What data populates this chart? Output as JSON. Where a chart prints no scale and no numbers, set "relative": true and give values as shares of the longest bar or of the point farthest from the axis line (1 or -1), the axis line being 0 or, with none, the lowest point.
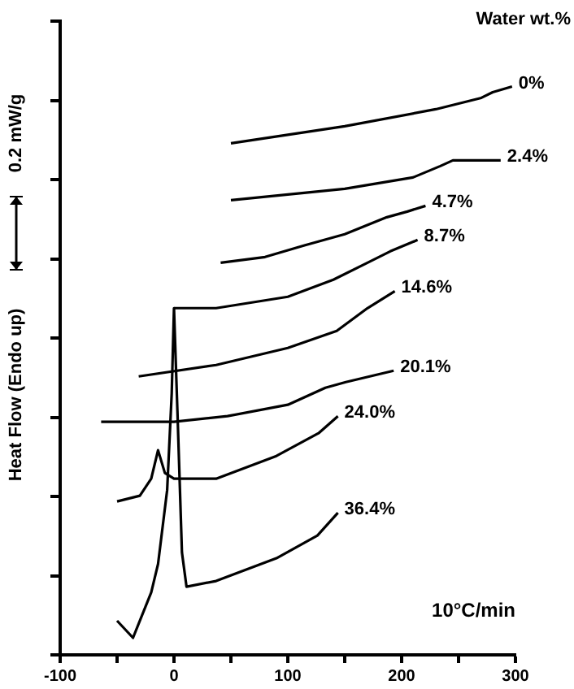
{
  "chart_data": {
    "type": "line",
    "relative": true,
    "ylabel": "Heat Flow (Endo up)",
    "legend_title": "Water wt.%",
    "annotations": [
      "10°C/min",
      "0.2 mW/g"
    ],
    "xlim": [
      -100,
      300
    ],
    "xticks": [
      -100,
      {
        "value": -50,
        "label": null
      },
      0,
      {
        "value": 50,
        "label": null
      },
      100,
      {
        "value": 150,
        "label": null
      },
      200,
      {
        "value": 250,
        "label": null
      },
      300
    ],
    "grid": false,
    "legend": false,
    "marker": "none",
    "line_style": "solid",
    "series": [
      {
        "name": "0%",
        "color": "#000000",
        "x": [
          50,
          150,
          230,
          270,
          280,
          297
        ],
        "values": [
          0.9,
          0.93,
          0.96,
          0.98,
          0.99,
          1
        ]
      },
      {
        "name": "2.4%",
        "color": "#000000",
        "x": [
          50,
          150,
          210,
          234,
          245,
          287
        ],
        "values": [
          0.8,
          0.82,
          0.84,
          0.86,
          0.87,
          0.87
        ]
      },
      {
        "name": "4.7%",
        "color": "#000000",
        "x": [
          41,
          80,
          114,
          150,
          187,
          205,
          221
        ],
        "values": [
          0.69,
          0.7,
          0.72,
          0.74,
          0.77,
          0.78,
          0.79
        ]
      },
      {
        "name": "8.7%",
        "color": "#000000",
        "x": [
          0,
          37,
          100,
          140,
          170,
          190,
          214
        ],
        "values": [
          0.61,
          0.61,
          0.63,
          0.66,
          0.69,
          0.71,
          0.73
        ]
      },
      {
        "name": "14.6%",
        "color": "#000000",
        "x": [
          -31,
          37,
          100,
          143,
          170,
          194
        ],
        "values": [
          0.49,
          0.51,
          0.54,
          0.57,
          0.61,
          0.64
        ]
      },
      {
        "name": "20.1%",
        "color": "#000000",
        "x": [
          -64,
          0,
          47,
          100,
          133,
          151,
          193
        ],
        "values": [
          0.41,
          0.41,
          0.42,
          0.44,
          0.47,
          0.48,
          0.5
        ]
      },
      {
        "name": "24.0%",
        "color": "#000000",
        "x": [
          -50,
          -30,
          -20,
          -14,
          -8,
          0,
          37,
          90,
          127,
          144
        ],
        "values": [
          0.27,
          0.28,
          0.31,
          0.36,
          0.32,
          0.31,
          0.31,
          0.35,
          0.39,
          0.42
        ]
      },
      {
        "name": "36.4%",
        "color": "#000000",
        "x": [
          -50,
          -36,
          -20,
          -14,
          -6,
          -2,
          0,
          3,
          7,
          11,
          37,
          90,
          126,
          144
        ],
        "values": [
          0.06,
          0.03,
          0.11,
          0.16,
          0.29,
          0.46,
          0.61,
          0.43,
          0.18,
          0.12,
          0.13,
          0.17,
          0.21,
          0.25
        ]
      }
    ]
  }
}
